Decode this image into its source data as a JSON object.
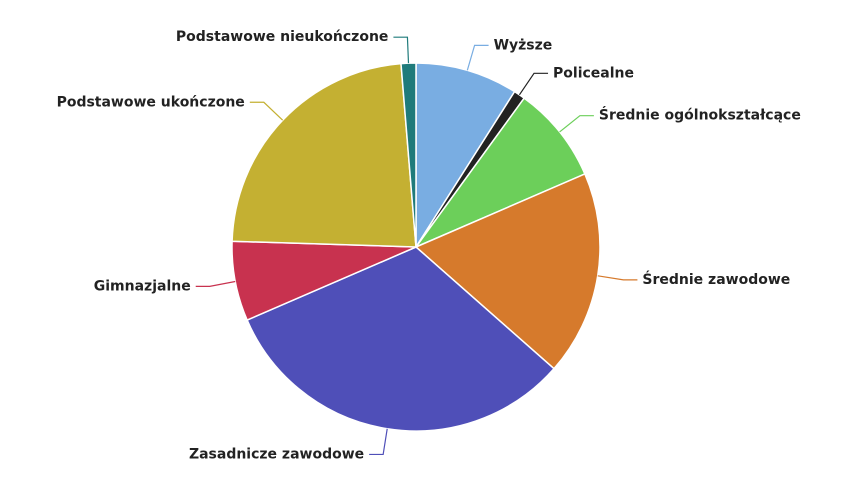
{
  "chart_data": {
    "type": "pie",
    "categories": [
      "Wyższe",
      "Policealne",
      "Średnie ogólnokształcące",
      "Średnie zawodowe",
      "Zasadnicze zawodowe",
      "Gimnazjalne",
      "Podstawowe ukończone",
      "Podstawowe nieukończone"
    ],
    "values": [
      9,
      1,
      8.5,
      18,
      32,
      7,
      23.2,
      1.3
    ],
    "colors": [
      "#79ade2",
      "#222222",
      "#6ccf5a",
      "#d67a2c",
      "#4f4fb8",
      "#c8324f",
      "#c4b032",
      "#1f7b7b"
    ]
  }
}
